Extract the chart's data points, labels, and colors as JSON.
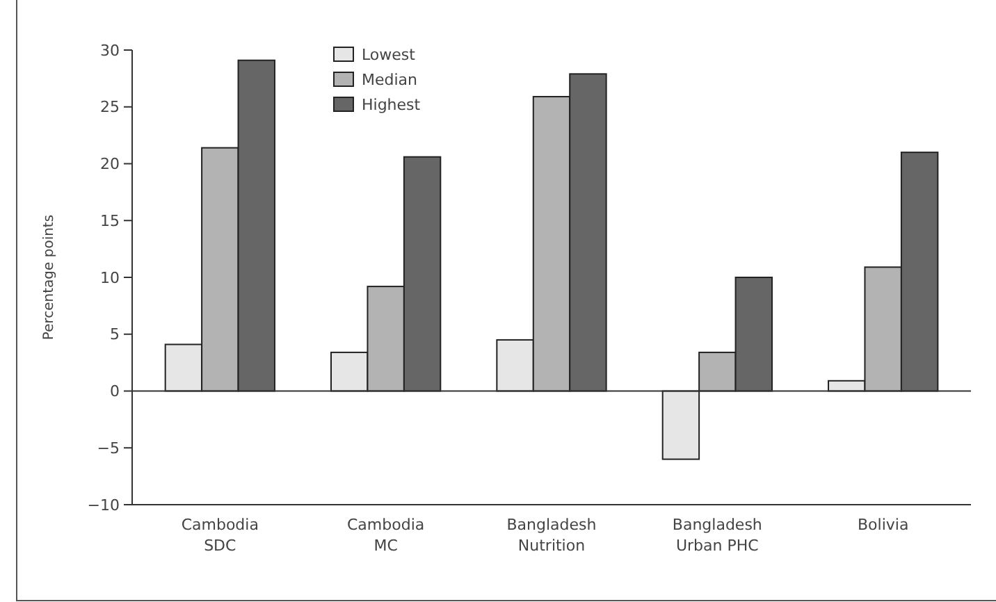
{
  "chart_data": {
    "type": "bar",
    "ylabel": "Percentage points",
    "categories": [
      "Cambodia\nSDC",
      "Cambodia\nMC",
      "Bangladesh\nNutrition",
      "Bangladesh\nUrban PHC",
      "Bolivia"
    ],
    "series": [
      {
        "name": "Lowest",
        "color": "#e6e6e6",
        "values": [
          4.1,
          3.4,
          4.5,
          -6.0,
          0.9
        ]
      },
      {
        "name": "Median",
        "color": "#b3b3b3",
        "values": [
          21.4,
          9.2,
          25.9,
          3.4,
          10.9
        ]
      },
      {
        "name": "Highest",
        "color": "#666666",
        "values": [
          29.1,
          20.6,
          27.9,
          10.0,
          21.0
        ]
      }
    ],
    "ylim": [
      -10,
      30
    ],
    "yticks": [
      {
        "value": -10,
        "label": "−10"
      },
      {
        "value": -5,
        "label": "−5"
      },
      0,
      5,
      10,
      15,
      20,
      25,
      30
    ],
    "ref_lines": [
      {
        "axis": "y",
        "value": 0
      }
    ],
    "legend": "top left"
  }
}
